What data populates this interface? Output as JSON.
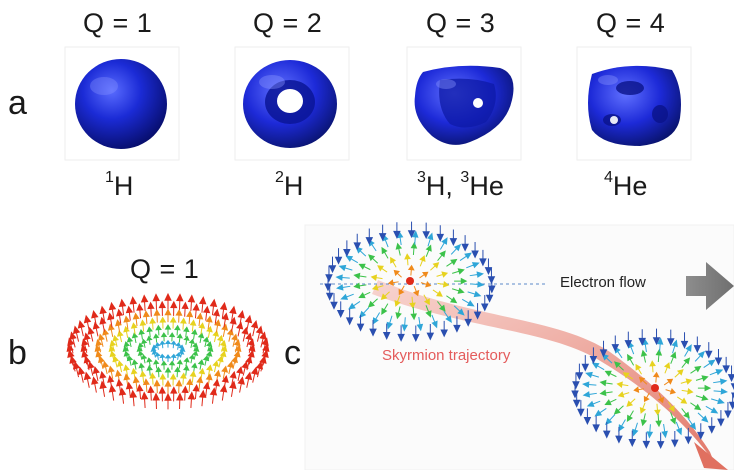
{
  "panel_a": {
    "letter": "a",
    "items": [
      {
        "q": "Q = 1",
        "mass": "1",
        "elem": "H"
      },
      {
        "q": "Q = 2",
        "mass": "2",
        "elem": "H"
      },
      {
        "q": "Q = 3",
        "mass": "3",
        "elem": "H",
        "sep": ", ",
        "mass2": "3",
        "elem2": "He"
      },
      {
        "q": "Q = 4",
        "mass": "4",
        "elem": "He"
      }
    ]
  },
  "panel_b": {
    "letter": "b",
    "q": "Q = 1"
  },
  "panel_c": {
    "letter": "c",
    "electron_flow": "Electron flow",
    "trajectory": "Skyrmion trajectory"
  },
  "colors": {
    "surface": "#1b2bd6",
    "trajectory": "#e8867a",
    "arrow_grey": "#7a7a7a",
    "spin_in": "#2a4fb0",
    "spin_out": "#e02a1a"
  }
}
